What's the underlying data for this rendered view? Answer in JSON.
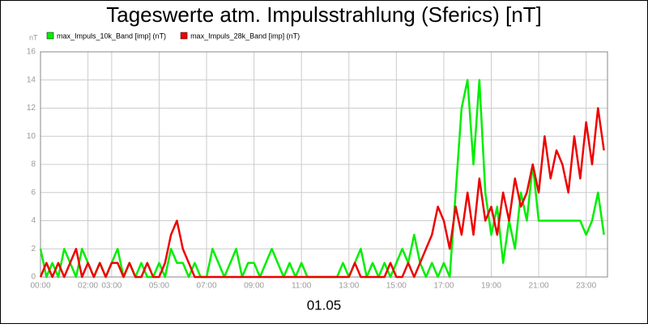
{
  "chart_data": {
    "type": "line",
    "title": "Tageswerte atm. Impulsstrahlung (Sferics) [nT]",
    "y_unit_label": "nT",
    "x_label": "01.05",
    "x": [
      0,
      0.25,
      0.5,
      0.75,
      1,
      1.25,
      1.5,
      1.75,
      2,
      2.25,
      2.5,
      2.75,
      3,
      3.25,
      3.5,
      3.75,
      4,
      4.25,
      4.5,
      4.75,
      5,
      5.25,
      5.5,
      5.75,
      6,
      6.25,
      6.5,
      6.75,
      7,
      7.25,
      7.5,
      7.75,
      8,
      8.25,
      8.5,
      8.75,
      9,
      9.25,
      9.5,
      9.75,
      10,
      10.25,
      10.5,
      10.75,
      11,
      11.25,
      11.5,
      11.75,
      12,
      12.25,
      12.5,
      12.75,
      13,
      13.25,
      13.5,
      13.75,
      14,
      14.25,
      14.5,
      14.75,
      15,
      15.25,
      15.5,
      15.75,
      16,
      16.25,
      16.5,
      16.75,
      17,
      17.25,
      17.5,
      17.75,
      18,
      18.25,
      18.5,
      18.75,
      19,
      19.25,
      19.5,
      19.75,
      20,
      20.25,
      20.5,
      20.75,
      21,
      21.25,
      21.5,
      21.75,
      22,
      22.25,
      22.5,
      22.75,
      23,
      23.25,
      23.5,
      23.75
    ],
    "series": [
      {
        "name": "max_Impuls_10k_Band [imp] (nT)",
        "color": "#00ee00",
        "values": [
          2,
          0,
          1,
          0,
          2,
          1,
          0,
          2,
          1,
          0,
          1,
          0,
          1,
          2,
          0,
          1,
          0,
          1,
          0,
          0,
          1,
          0,
          2,
          1,
          1,
          0,
          1,
          0,
          0,
          2,
          1,
          0,
          1,
          2,
          0,
          1,
          1,
          0,
          1,
          2,
          1,
          0,
          1,
          0,
          1,
          0,
          0,
          0,
          0,
          0,
          0,
          1,
          0,
          1,
          2,
          0,
          1,
          0,
          1,
          0,
          1,
          2,
          1,
          3,
          1,
          0,
          1,
          0,
          1,
          0,
          6,
          12,
          14,
          8,
          14,
          6,
          3,
          5,
          1,
          4,
          2,
          6,
          4,
          8,
          4,
          4,
          4,
          4,
          4,
          4,
          4,
          4,
          3,
          4,
          6,
          3
        ]
      },
      {
        "name": "max_Impuls_28k_Band [imp] (nT)",
        "color": "#ee0000",
        "values": [
          0,
          1,
          0,
          1,
          0,
          1,
          2,
          0,
          1,
          0,
          1,
          0,
          1,
          1,
          0,
          1,
          0,
          0,
          1,
          0,
          0,
          1,
          3,
          4,
          2,
          1,
          0,
          0,
          0,
          0,
          0,
          0,
          0,
          0,
          0,
          0,
          0,
          0,
          0,
          0,
          0,
          0,
          0,
          0,
          0,
          0,
          0,
          0,
          0,
          0,
          0,
          0,
          0,
          1,
          0,
          0,
          0,
          0,
          0,
          1,
          0,
          0,
          1,
          0,
          1,
          2,
          3,
          5,
          4,
          2,
          5,
          3,
          6,
          3,
          7,
          4,
          5,
          3,
          6,
          4,
          7,
          5,
          6,
          8,
          6,
          10,
          7,
          9,
          8,
          6,
          10,
          7,
          11,
          8,
          12,
          9
        ]
      }
    ],
    "xlim": [
      0,
      23.9
    ],
    "xticks": [
      {
        "value": 0,
        "label": "00:00"
      },
      {
        "value": 2,
        "label": "02:00"
      },
      {
        "value": 3,
        "label": "03:00"
      },
      {
        "value": 5,
        "label": "05:00"
      },
      {
        "value": 7,
        "label": "07:00"
      },
      {
        "value": 9,
        "label": "09:00"
      },
      {
        "value": 11,
        "label": "11:00"
      },
      {
        "value": 13,
        "label": "13:00"
      },
      {
        "value": 15,
        "label": "15:00"
      },
      {
        "value": 17,
        "label": "17:00"
      },
      {
        "value": 19,
        "label": "19:00"
      },
      {
        "value": 21,
        "label": "21:00"
      },
      {
        "value": 23,
        "label": "23:00"
      }
    ],
    "ylim": [
      0,
      16
    ],
    "yticks": [
      0,
      2,
      4,
      6,
      8,
      10,
      12,
      14,
      16
    ],
    "grid": true
  }
}
